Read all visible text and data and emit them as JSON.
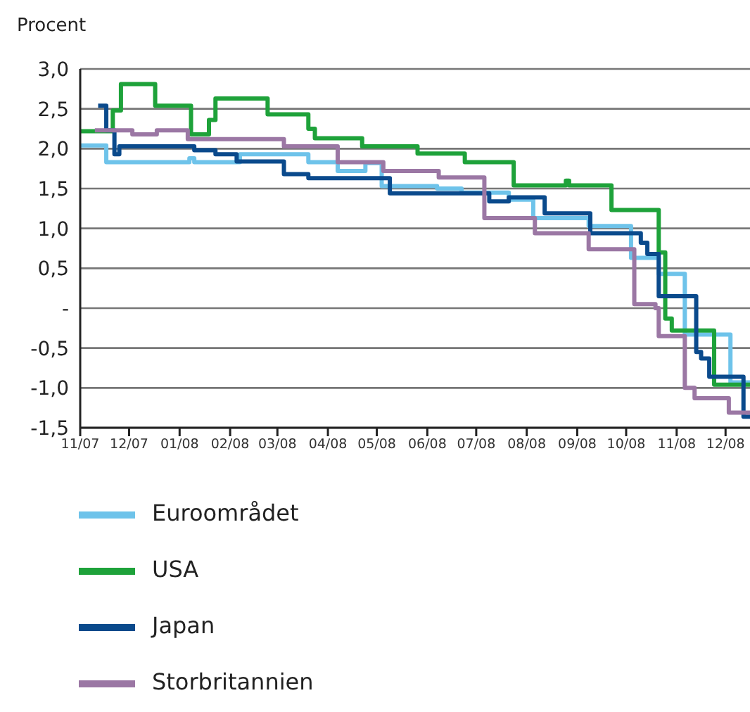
{
  "chart_data": {
    "type": "step",
    "ylabel": "Procent",
    "xlim": [
      "2007-11-01",
      "2008-12-16"
    ],
    "xticks": [
      {
        "value": "2007-11",
        "label": "11/07"
      },
      {
        "value": "2007-12",
        "label": "12/07"
      },
      {
        "value": "2008-01",
        "label": "01/08"
      },
      {
        "value": "2008-02",
        "label": "02/08"
      },
      {
        "value": "2008-03",
        "label": "03/08"
      },
      {
        "value": "2008-04",
        "label": "04/08"
      },
      {
        "value": "2008-05",
        "label": "05/08"
      },
      {
        "value": "2008-06",
        "label": "06/08"
      },
      {
        "value": "2008-07",
        "label": "07/08"
      },
      {
        "value": "2008-08",
        "label": "08/08"
      },
      {
        "value": "2008-09",
        "label": "09/08"
      },
      {
        "value": "2008-10",
        "label": "10/08"
      },
      {
        "value": "2008-11",
        "label": "11/08"
      },
      {
        "value": "2008-12",
        "label": "12/08"
      }
    ],
    "ylim": [
      -1.5,
      3
    ],
    "yticks": [
      {
        "value": -1.5,
        "label": "-1,5"
      },
      {
        "value": -1,
        "label": "-1,0"
      },
      {
        "value": -0.5,
        "label": "-0,5"
      },
      {
        "value": 0,
        "label": "-"
      },
      {
        "value": 0.5,
        "label": "0,5"
      },
      {
        "value": 1,
        "label": "1,0"
      },
      {
        "value": 1.5,
        "label": "1,5"
      },
      {
        "value": 2,
        "label": "2,0"
      },
      {
        "value": 2.5,
        "label": "2,5"
      },
      {
        "value": 3,
        "label": "3,0"
      }
    ],
    "grid": "y",
    "legend": "bottom",
    "marker": "none",
    "line_style": "solid",
    "series": [
      {
        "name": "Euroområdet",
        "color": "#6ec3ea",
        "x": [
          "2007-11-01",
          "2007-11-17",
          "2008-01-07",
          "2008-01-10",
          "2008-02-07",
          "2008-03-20",
          "2008-04-07",
          "2008-04-24",
          "2008-05-04",
          "2008-06-07",
          "2008-06-22",
          "2008-07-21",
          "2008-08-05",
          "2008-09-08",
          "2008-10-04",
          "2008-10-21",
          "2008-11-06",
          "2008-12-04",
          "2008-12-16"
        ],
        "values": [
          2.04,
          1.83,
          1.88,
          1.83,
          1.93,
          1.83,
          1.72,
          1.82,
          1.53,
          1.5,
          1.45,
          1.36,
          1.13,
          1.03,
          0.63,
          0.43,
          -0.33,
          -0.93,
          -0.93
        ]
      },
      {
        "name": "USA",
        "color": "#1ea23a",
        "x": [
          "2007-11-01",
          "2007-11-21",
          "2007-11-26",
          "2007-12-17",
          "2008-01-08",
          "2008-01-19",
          "2008-01-23",
          "2008-02-24",
          "2008-03-20",
          "2008-03-24",
          "2008-04-22",
          "2008-05-26",
          "2008-06-24",
          "2008-07-24",
          "2008-08-25",
          "2008-08-27",
          "2008-09-22",
          "2008-10-21",
          "2008-10-25",
          "2008-10-29",
          "2008-11-24",
          "2008-12-16"
        ],
        "values": [
          2.22,
          2.48,
          2.81,
          2.54,
          2.18,
          2.36,
          2.63,
          2.43,
          2.25,
          2.13,
          2.03,
          1.94,
          1.83,
          1.54,
          1.6,
          1.54,
          1.23,
          0.7,
          -0.13,
          -0.28,
          -0.96,
          -0.96
        ]
      },
      {
        "name": "Japan",
        "color": "#0a4a8c",
        "x": [
          "2007-11-12",
          "2007-11-17",
          "2007-11-22",
          "2007-11-25",
          "2008-01-10",
          "2008-01-23",
          "2008-02-05",
          "2008-03-05",
          "2008-03-20",
          "2008-05-09",
          "2008-07-09",
          "2008-07-21",
          "2008-08-12",
          "2008-09-09",
          "2008-10-10",
          "2008-10-14",
          "2008-10-21",
          "2008-11-13",
          "2008-11-16",
          "2008-11-21",
          "2008-12-12",
          "2008-12-16"
        ],
        "values": [
          2.54,
          2.23,
          1.93,
          2.03,
          1.98,
          1.93,
          1.84,
          1.68,
          1.63,
          1.44,
          1.34,
          1.39,
          1.19,
          0.94,
          0.82,
          0.68,
          0.15,
          -0.55,
          -0.63,
          -0.86,
          -1.36,
          -1.36
        ]
      },
      {
        "name": "Storbritannien",
        "color": "#9b77a4",
        "x": [
          "2007-11-10",
          "2007-12-03",
          "2007-12-18",
          "2008-01-06",
          "2008-03-05",
          "2008-04-07",
          "2008-05-05",
          "2008-06-08",
          "2008-07-06",
          "2008-08-06",
          "2008-09-08",
          "2008-10-06",
          "2008-10-19",
          "2008-10-21",
          "2008-11-06",
          "2008-11-12",
          "2008-12-03",
          "2008-12-16"
        ],
        "values": [
          2.23,
          2.18,
          2.23,
          2.12,
          2.03,
          1.83,
          1.72,
          1.64,
          1.13,
          0.94,
          0.74,
          0.05,
          0.0,
          -0.35,
          -1.0,
          -1.13,
          -1.31,
          -1.31
        ]
      }
    ]
  }
}
